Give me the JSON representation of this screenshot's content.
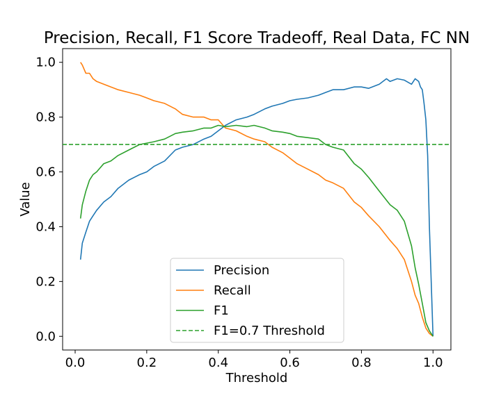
{
  "chart_data": {
    "type": "line",
    "title": "Precision, Recall, F1 Score Tradeoff, Real Data, FC NN",
    "xlabel": "Threshold",
    "ylabel": "Value",
    "xlim": [
      -0.035,
      1.05
    ],
    "ylim": [
      -0.05,
      1.05
    ],
    "xticks": [
      0.0,
      0.2,
      0.4,
      0.6,
      0.8,
      1.0
    ],
    "xtick_labels": [
      "0.0",
      "0.2",
      "0.4",
      "0.6",
      "0.8",
      "1.0"
    ],
    "yticks": [
      0.0,
      0.2,
      0.4,
      0.6,
      0.8,
      1.0
    ],
    "ytick_labels": [
      "0.0",
      "0.2",
      "0.4",
      "0.6",
      "0.8",
      "1.0"
    ],
    "grid": false,
    "legend_position": "lower-center",
    "series": [
      {
        "name": "Precision",
        "color": "#1f77b4",
        "style": "solid",
        "x": [
          0.015,
          0.02,
          0.03,
          0.04,
          0.05,
          0.06,
          0.08,
          0.1,
          0.12,
          0.15,
          0.18,
          0.2,
          0.22,
          0.25,
          0.28,
          0.3,
          0.33,
          0.36,
          0.38,
          0.4,
          0.42,
          0.45,
          0.48,
          0.5,
          0.53,
          0.55,
          0.58,
          0.6,
          0.62,
          0.65,
          0.68,
          0.7,
          0.72,
          0.75,
          0.78,
          0.8,
          0.82,
          0.85,
          0.87,
          0.88,
          0.9,
          0.92,
          0.94,
          0.95,
          0.96,
          0.965,
          0.97,
          0.975,
          0.98,
          0.985,
          0.99,
          0.995,
          1.0
        ],
        "values": [
          0.28,
          0.34,
          0.38,
          0.42,
          0.44,
          0.46,
          0.49,
          0.51,
          0.54,
          0.57,
          0.59,
          0.6,
          0.62,
          0.64,
          0.68,
          0.69,
          0.7,
          0.72,
          0.73,
          0.75,
          0.77,
          0.79,
          0.8,
          0.81,
          0.83,
          0.84,
          0.85,
          0.86,
          0.865,
          0.87,
          0.88,
          0.89,
          0.9,
          0.9,
          0.91,
          0.91,
          0.905,
          0.92,
          0.94,
          0.93,
          0.94,
          0.935,
          0.92,
          0.94,
          0.93,
          0.91,
          0.9,
          0.85,
          0.79,
          0.66,
          0.4,
          0.2,
          0.0
        ]
      },
      {
        "name": "Recall",
        "color": "#ff7f0e",
        "style": "solid",
        "x": [
          0.015,
          0.02,
          0.03,
          0.04,
          0.05,
          0.06,
          0.08,
          0.1,
          0.12,
          0.15,
          0.18,
          0.2,
          0.22,
          0.25,
          0.28,
          0.3,
          0.33,
          0.36,
          0.38,
          0.4,
          0.42,
          0.45,
          0.48,
          0.5,
          0.53,
          0.55,
          0.58,
          0.6,
          0.62,
          0.65,
          0.68,
          0.7,
          0.72,
          0.75,
          0.78,
          0.8,
          0.82,
          0.85,
          0.88,
          0.9,
          0.92,
          0.94,
          0.95,
          0.96,
          0.97,
          0.98,
          0.99,
          1.0
        ],
        "values": [
          1.0,
          0.99,
          0.96,
          0.96,
          0.94,
          0.93,
          0.92,
          0.91,
          0.9,
          0.89,
          0.88,
          0.87,
          0.86,
          0.85,
          0.83,
          0.81,
          0.8,
          0.8,
          0.79,
          0.79,
          0.76,
          0.75,
          0.73,
          0.72,
          0.71,
          0.69,
          0.67,
          0.65,
          0.63,
          0.61,
          0.59,
          0.57,
          0.56,
          0.54,
          0.49,
          0.47,
          0.44,
          0.4,
          0.35,
          0.32,
          0.28,
          0.2,
          0.15,
          0.12,
          0.07,
          0.03,
          0.01,
          0.0
        ]
      },
      {
        "name": "F1",
        "color": "#2ca02c",
        "style": "solid",
        "x": [
          0.015,
          0.02,
          0.03,
          0.04,
          0.05,
          0.06,
          0.08,
          0.1,
          0.12,
          0.15,
          0.18,
          0.2,
          0.22,
          0.25,
          0.28,
          0.3,
          0.33,
          0.36,
          0.38,
          0.4,
          0.42,
          0.45,
          0.48,
          0.5,
          0.53,
          0.55,
          0.58,
          0.6,
          0.62,
          0.65,
          0.68,
          0.7,
          0.72,
          0.75,
          0.78,
          0.8,
          0.82,
          0.85,
          0.88,
          0.9,
          0.92,
          0.94,
          0.95,
          0.96,
          0.97,
          0.98,
          0.99,
          1.0
        ],
        "values": [
          0.43,
          0.48,
          0.53,
          0.57,
          0.59,
          0.6,
          0.63,
          0.64,
          0.66,
          0.68,
          0.7,
          0.705,
          0.71,
          0.72,
          0.74,
          0.745,
          0.75,
          0.76,
          0.76,
          0.77,
          0.765,
          0.77,
          0.765,
          0.77,
          0.76,
          0.75,
          0.745,
          0.74,
          0.73,
          0.725,
          0.72,
          0.7,
          0.69,
          0.68,
          0.63,
          0.61,
          0.58,
          0.53,
          0.48,
          0.46,
          0.42,
          0.33,
          0.25,
          0.19,
          0.12,
          0.05,
          0.02,
          0.0
        ]
      },
      {
        "name": "F1=0.7 Threshold",
        "color": "#2ca02c",
        "style": "dashed",
        "hline": 0.7
      }
    ]
  }
}
